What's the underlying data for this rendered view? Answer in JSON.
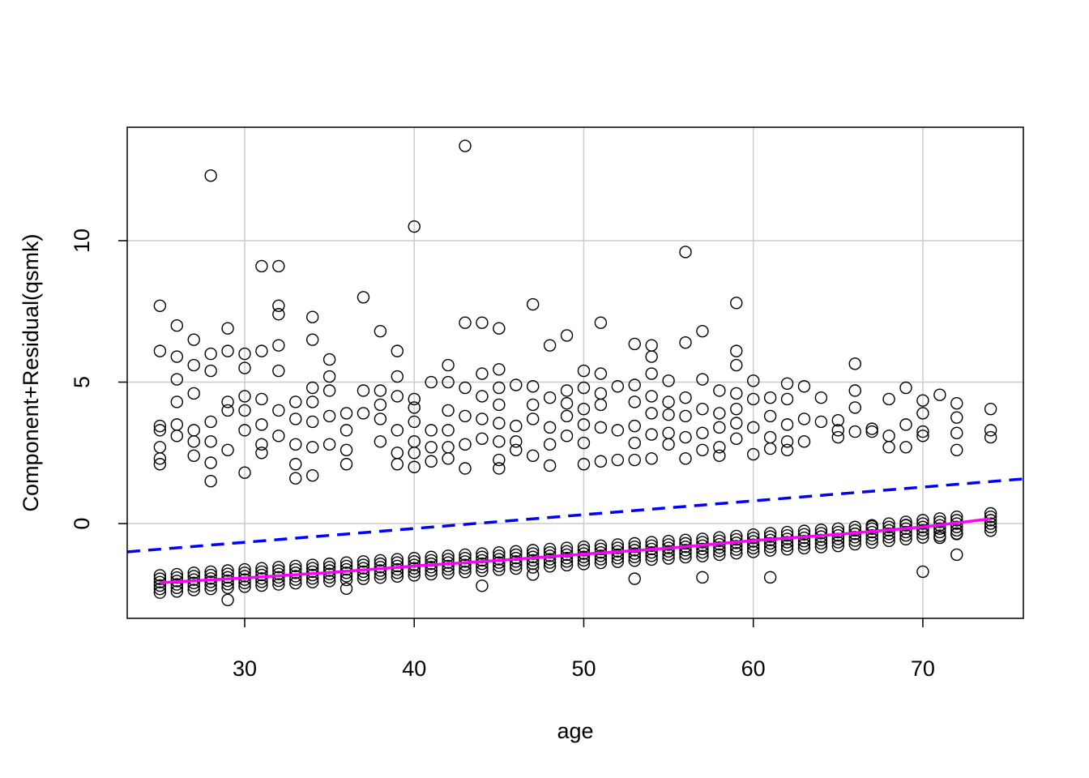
{
  "chart_data": {
    "type": "scatter",
    "title": "",
    "xlabel": "age",
    "ylabel": "Component+Residual(qsmk)",
    "xlim": [
      23.07,
      75.93
    ],
    "ylim": [
      -3.35,
      14.01
    ],
    "xticks": [
      30,
      40,
      50,
      60,
      70
    ],
    "yticks": [
      0,
      5,
      10
    ],
    "grid": true,
    "colors": {
      "points": "#000000",
      "fit_line": "#0000FF",
      "smooth_line": "#FF00FF",
      "grid": "#CCCCCC"
    },
    "upper_points": [
      [
        25,
        7.7
      ],
      [
        25,
        6.1
      ],
      [
        25,
        3.45
      ],
      [
        25,
        3.3
      ],
      [
        25,
        2.7
      ],
      [
        25,
        2.3
      ],
      [
        25,
        2.1
      ],
      [
        26,
        7.0
      ],
      [
        26,
        5.9
      ],
      [
        26,
        5.1
      ],
      [
        26,
        4.3
      ],
      [
        26,
        3.5
      ],
      [
        26,
        3.1
      ],
      [
        27,
        6.5
      ],
      [
        27,
        5.6
      ],
      [
        27,
        4.6
      ],
      [
        27,
        3.3
      ],
      [
        27,
        2.9
      ],
      [
        27,
        2.4
      ],
      [
        28,
        12.3
      ],
      [
        28,
        6.0
      ],
      [
        28,
        5.4
      ],
      [
        28,
        3.6
      ],
      [
        28,
        2.9
      ],
      [
        28,
        2.15
      ],
      [
        28,
        1.5
      ],
      [
        29,
        6.9
      ],
      [
        29,
        6.1
      ],
      [
        29,
        4.3
      ],
      [
        29,
        4.0
      ],
      [
        29,
        2.6
      ],
      [
        30,
        6.0
      ],
      [
        30,
        5.5
      ],
      [
        30,
        4.5
      ],
      [
        30,
        4.0
      ],
      [
        30,
        3.3
      ],
      [
        30,
        1.8
      ],
      [
        31,
        9.1
      ],
      [
        31,
        6.1
      ],
      [
        31,
        4.4
      ],
      [
        31,
        3.5
      ],
      [
        31,
        2.8
      ],
      [
        31,
        2.5
      ],
      [
        32,
        9.1
      ],
      [
        32,
        7.7
      ],
      [
        32,
        7.4
      ],
      [
        32,
        6.3
      ],
      [
        32,
        5.4
      ],
      [
        32,
        4.0
      ],
      [
        32,
        3.1
      ],
      [
        33,
        4.3
      ],
      [
        33,
        3.7
      ],
      [
        33,
        2.8
      ],
      [
        33,
        2.1
      ],
      [
        33,
        1.6
      ],
      [
        34,
        7.3
      ],
      [
        34,
        6.5
      ],
      [
        34,
        4.8
      ],
      [
        34,
        4.3
      ],
      [
        34,
        3.6
      ],
      [
        34,
        2.7
      ],
      [
        34,
        1.7
      ],
      [
        35,
        5.8
      ],
      [
        35,
        5.2
      ],
      [
        35,
        4.7
      ],
      [
        35,
        3.8
      ],
      [
        35,
        2.8
      ],
      [
        36,
        3.9
      ],
      [
        36,
        3.3
      ],
      [
        36,
        2.6
      ],
      [
        36,
        2.1
      ],
      [
        37,
        8.0
      ],
      [
        37,
        4.7
      ],
      [
        37,
        3.9
      ],
      [
        38,
        6.8
      ],
      [
        38,
        4.7
      ],
      [
        38,
        4.2
      ],
      [
        38,
        3.7
      ],
      [
        38,
        2.9
      ],
      [
        39,
        6.1
      ],
      [
        39,
        5.2
      ],
      [
        39,
        4.5
      ],
      [
        39,
        3.3
      ],
      [
        39,
        2.5
      ],
      [
        39,
        2.1
      ],
      [
        40,
        10.5
      ],
      [
        40,
        4.4
      ],
      [
        40,
        4.1
      ],
      [
        40,
        3.6
      ],
      [
        40,
        2.9
      ],
      [
        40,
        2.5
      ],
      [
        40,
        2.0
      ],
      [
        41,
        5.0
      ],
      [
        41,
        3.3
      ],
      [
        41,
        2.7
      ],
      [
        41,
        2.2
      ],
      [
        42,
        5.6
      ],
      [
        42,
        5.0
      ],
      [
        42,
        4.0
      ],
      [
        42,
        3.3
      ],
      [
        42,
        2.7
      ],
      [
        42,
        2.3
      ],
      [
        43,
        13.35
      ],
      [
        43,
        7.1
      ],
      [
        43,
        4.8
      ],
      [
        43,
        3.8
      ],
      [
        43,
        2.8
      ],
      [
        43,
        1.95
      ],
      [
        44,
        7.1
      ],
      [
        44,
        5.3
      ],
      [
        44,
        4.5
      ],
      [
        44,
        3.7
      ],
      [
        44,
        3.0
      ],
      [
        45,
        6.9
      ],
      [
        45,
        5.45
      ],
      [
        45,
        4.8
      ],
      [
        45,
        4.2
      ],
      [
        45,
        3.55
      ],
      [
        45,
        2.9
      ],
      [
        45,
        2.25
      ],
      [
        45,
        1.95
      ],
      [
        46,
        4.9
      ],
      [
        46,
        3.45
      ],
      [
        46,
        2.9
      ],
      [
        46,
        2.6
      ],
      [
        47,
        7.75
      ],
      [
        47,
        4.85
      ],
      [
        47,
        4.2
      ],
      [
        47,
        3.7
      ],
      [
        47,
        2.4
      ],
      [
        48,
        6.3
      ],
      [
        48,
        4.45
      ],
      [
        48,
        3.4
      ],
      [
        48,
        2.8
      ],
      [
        48,
        2.05
      ],
      [
        49,
        6.65
      ],
      [
        49,
        4.7
      ],
      [
        49,
        4.25
      ],
      [
        49,
        3.8
      ],
      [
        49,
        3.1
      ],
      [
        50,
        5.4
      ],
      [
        50,
        4.8
      ],
      [
        50,
        4.05
      ],
      [
        50,
        3.5
      ],
      [
        50,
        2.85
      ],
      [
        50,
        2.1
      ],
      [
        51,
        7.1
      ],
      [
        51,
        5.3
      ],
      [
        51,
        4.6
      ],
      [
        51,
        4.2
      ],
      [
        51,
        3.4
      ],
      [
        51,
        2.2
      ],
      [
        52,
        4.85
      ],
      [
        52,
        3.3
      ],
      [
        52,
        2.25
      ],
      [
        53,
        6.35
      ],
      [
        53,
        4.9
      ],
      [
        53,
        4.3
      ],
      [
        53,
        3.45
      ],
      [
        53,
        2.85
      ],
      [
        53,
        2.25
      ],
      [
        54,
        6.3
      ],
      [
        54,
        5.9
      ],
      [
        54,
        5.3
      ],
      [
        54,
        4.5
      ],
      [
        54,
        3.9
      ],
      [
        54,
        3.15
      ],
      [
        54,
        2.3
      ],
      [
        55,
        5.05
      ],
      [
        55,
        4.3
      ],
      [
        55,
        3.85
      ],
      [
        55,
        3.2
      ],
      [
        55,
        2.8
      ],
      [
        56,
        9.6
      ],
      [
        56,
        6.4
      ],
      [
        56,
        4.45
      ],
      [
        56,
        3.8
      ],
      [
        56,
        3.05
      ],
      [
        56,
        2.3
      ],
      [
        57,
        6.8
      ],
      [
        57,
        5.1
      ],
      [
        57,
        4.05
      ],
      [
        57,
        3.2
      ],
      [
        57,
        2.6
      ],
      [
        58,
        4.7
      ],
      [
        58,
        3.9
      ],
      [
        58,
        3.4
      ],
      [
        58,
        2.7
      ],
      [
        58,
        2.4
      ],
      [
        59,
        7.8
      ],
      [
        59,
        6.1
      ],
      [
        59,
        5.6
      ],
      [
        59,
        4.6
      ],
      [
        59,
        4.05
      ],
      [
        59,
        3.55
      ],
      [
        59,
        3.0
      ],
      [
        60,
        5.05
      ],
      [
        60,
        4.4
      ],
      [
        60,
        3.4
      ],
      [
        60,
        2.45
      ],
      [
        61,
        4.45
      ],
      [
        61,
        3.8
      ],
      [
        61,
        3.05
      ],
      [
        61,
        2.65
      ],
      [
        62,
        4.95
      ],
      [
        62,
        4.4
      ],
      [
        62,
        3.5
      ],
      [
        62,
        2.9
      ],
      [
        62,
        2.6
      ],
      [
        63,
        4.85
      ],
      [
        63,
        3.7
      ],
      [
        63,
        2.9
      ],
      [
        64,
        4.45
      ],
      [
        64,
        3.6
      ],
      [
        65,
        3.65
      ],
      [
        65,
        3.3
      ],
      [
        65,
        3.05
      ],
      [
        66,
        5.65
      ],
      [
        66,
        4.7
      ],
      [
        66,
        4.1
      ],
      [
        66,
        3.25
      ],
      [
        67,
        3.35
      ],
      [
        67,
        3.25
      ],
      [
        68,
        4.4
      ],
      [
        68,
        3.1
      ],
      [
        68,
        2.7
      ],
      [
        69,
        4.8
      ],
      [
        69,
        3.5
      ],
      [
        69,
        2.7
      ],
      [
        70,
        4.35
      ],
      [
        70,
        3.9
      ],
      [
        70,
        3.25
      ],
      [
        70,
        3.1
      ],
      [
        71,
        4.55
      ],
      [
        72,
        4.25
      ],
      [
        72,
        3.75
      ],
      [
        72,
        3.2
      ],
      [
        72,
        2.6
      ],
      [
        74,
        4.05
      ],
      [
        74,
        3.3
      ],
      [
        74,
        3.05
      ]
    ],
    "lower_band": {
      "ages": [
        25,
        26,
        27,
        28,
        29,
        30,
        31,
        32,
        33,
        34,
        35,
        36,
        37,
        38,
        39,
        40,
        41,
        42,
        43,
        44,
        45,
        46,
        47,
        48,
        49,
        50,
        51,
        52,
        53,
        54,
        55,
        56,
        57,
        58,
        59,
        60,
        61,
        62,
        63,
        64,
        65,
        66,
        67,
        68,
        69,
        70,
        71,
        72,
        74
      ],
      "centers": [
        -2.09,
        -2.05,
        -2.0,
        -1.96,
        -1.92,
        -1.88,
        -1.84,
        -1.8,
        -1.76,
        -1.72,
        -1.68,
        -1.64,
        -1.6,
        -1.56,
        -1.52,
        -1.48,
        -1.44,
        -1.4,
        -1.36,
        -1.32,
        -1.28,
        -1.24,
        -1.2,
        -1.16,
        -1.12,
        -1.08,
        -1.04,
        -1.0,
        -0.96,
        -0.92,
        -0.88,
        -0.84,
        -0.8,
        -0.75,
        -0.7,
        -0.65,
        -0.6,
        -0.56,
        -0.52,
        -0.48,
        -0.44,
        -0.38,
        -0.32,
        -0.26,
        -0.2,
        -0.14,
        -0.08,
        -0.02,
        0.1
      ],
      "offsets": [
        -0.35,
        -0.22,
        -0.1,
        0.02,
        0.14,
        0.26
      ]
    },
    "lower_outliers": [
      [
        29,
        -2.7
      ],
      [
        36,
        -2.3
      ],
      [
        44,
        -2.2
      ],
      [
        47,
        -1.8
      ],
      [
        53,
        -1.95
      ],
      [
        57,
        -1.9
      ],
      [
        61,
        -1.9
      ],
      [
        70,
        -1.7
      ],
      [
        72,
        -1.1
      ],
      [
        71,
        -0.5
      ],
      [
        72,
        -0.35
      ],
      [
        69,
        -0.05
      ],
      [
        67,
        -0.1
      ]
    ],
    "fit_line": {
      "name": "linear fit",
      "intercept": -2.126,
      "slope": 0.0488
    },
    "smooth_line": {
      "name": "smooth",
      "points": [
        [
          25,
          -2.09
        ],
        [
          30,
          -1.92
        ],
        [
          35,
          -1.73
        ],
        [
          40,
          -1.5
        ],
        [
          45,
          -1.3
        ],
        [
          50,
          -1.08
        ],
        [
          55,
          -0.87
        ],
        [
          60,
          -0.6
        ],
        [
          65,
          -0.38
        ],
        [
          70,
          -0.12
        ],
        [
          74,
          0.17
        ]
      ]
    }
  }
}
